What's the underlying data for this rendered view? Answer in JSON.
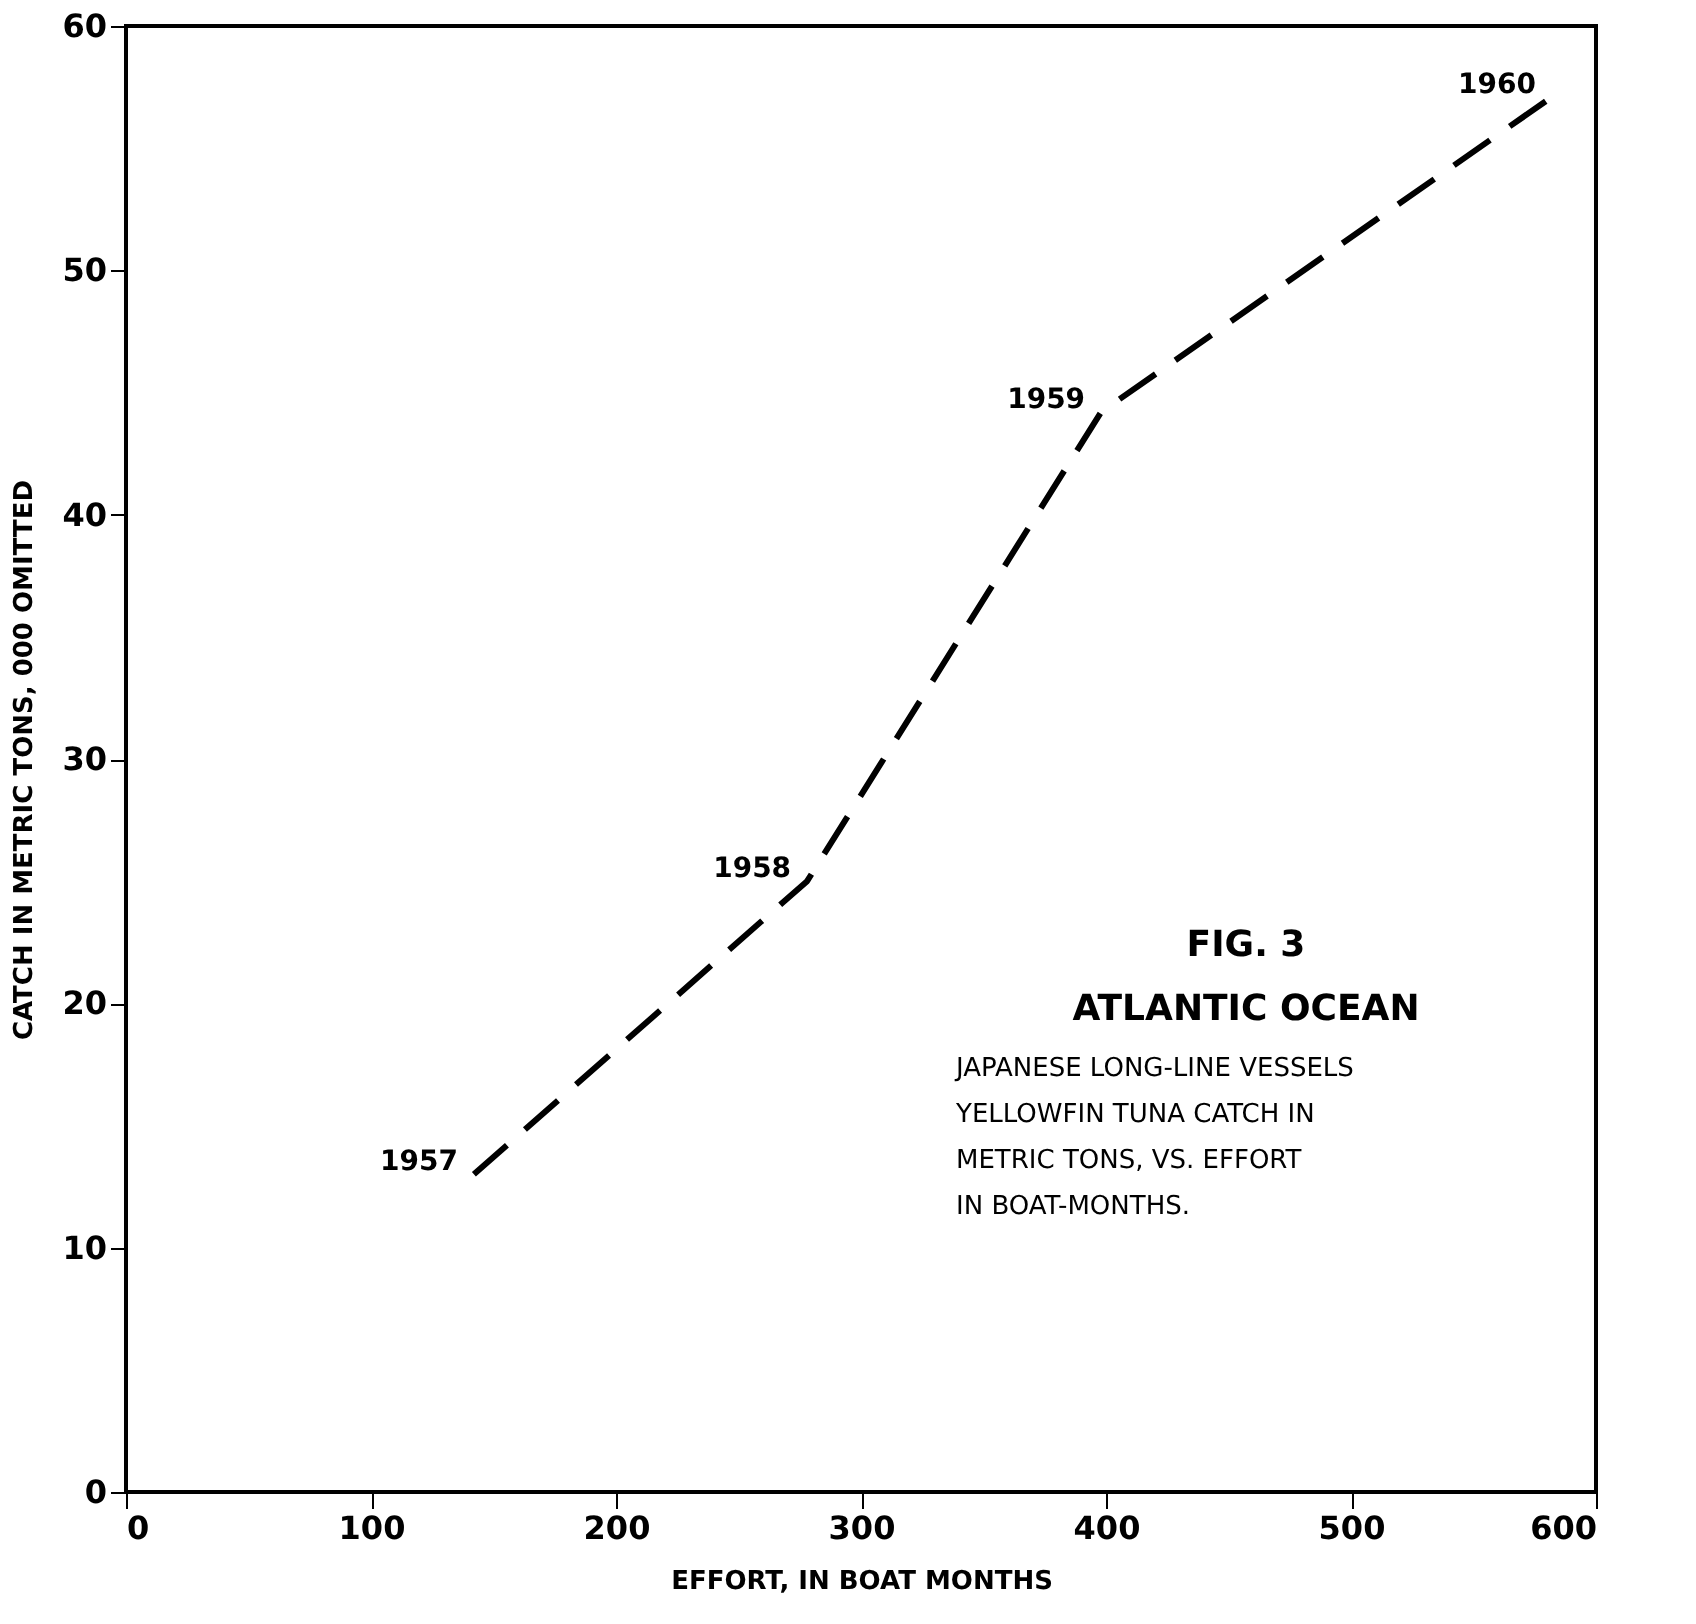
{
  "chart_data": {
    "type": "line",
    "title": "FIG. 3",
    "subtitle": "ATLANTIC OCEAN",
    "xlabel": "EFFORT, IN BOAT MONTHS",
    "ylabel": "CATCH IN METRIC TONS, 000 OMITTED",
    "x": [
      142,
      278,
      398,
      582
    ],
    "series": [
      {
        "color": "#000000",
        "values": [
          13,
          25,
          44.2,
          57.1
        ]
      }
    ],
    "xlim": [
      0,
      600
    ],
    "ylim": [
      0,
      60
    ],
    "xticks": [
      0,
      100,
      200,
      300,
      400,
      500,
      600
    ],
    "yticks": [
      0,
      10,
      20,
      30,
      40,
      50,
      60
    ],
    "grid": false,
    "line_style": "dashed",
    "marker": "none",
    "annotations": [
      {
        "text": "1957",
        "x": 142,
        "y": 13
      },
      {
        "text": "1958",
        "x": 278,
        "y": 25
      },
      {
        "text": "1959",
        "x": 398,
        "y": 44.2
      },
      {
        "text": "1960",
        "x": 582,
        "y": 57.1
      },
      "JAPANESE LONG-LINE VESSELS\nYELLOWFIN TUNA CATCH IN\nMETRIC TONS, VS. EFFORT\nIN BOAT-MONTHS."
    ]
  }
}
